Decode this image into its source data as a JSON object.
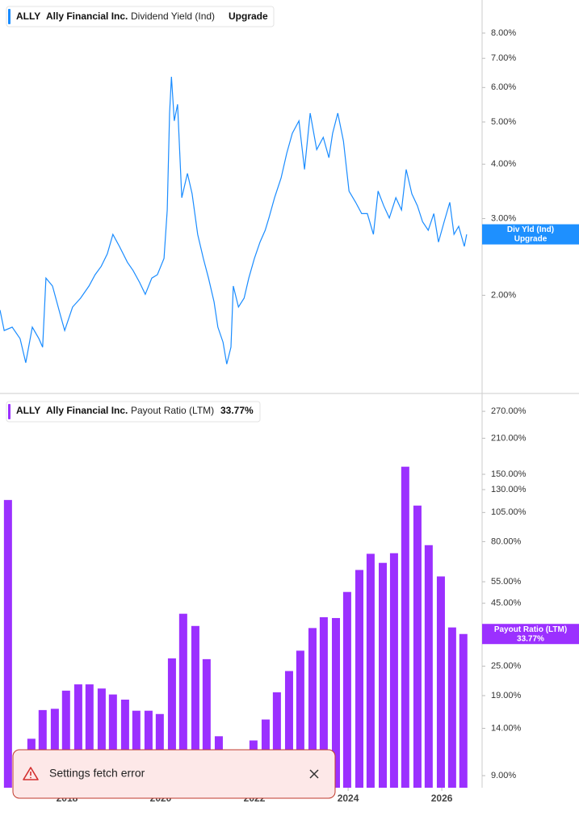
{
  "chart_data": [
    {
      "type": "line",
      "ticker": "ALLY",
      "company": "Ally Financial Inc.",
      "metric": "Dividend Yield (Ind)",
      "action": "Upgrade",
      "badge_label": "Div Yld (Ind)",
      "color": "#1a8cff",
      "log_scale": true,
      "x": [
        2016.57,
        2016.66,
        2016.83,
        2017.0,
        2017.12,
        2017.26,
        2017.4,
        2017.48,
        2017.55,
        2017.69,
        2017.86,
        2017.95,
        2018.12,
        2018.29,
        2018.47,
        2018.6,
        2018.73,
        2018.86,
        2018.98,
        2019.12,
        2019.29,
        2019.41,
        2019.55,
        2019.67,
        2019.81,
        2019.93,
        2020.07,
        2020.14,
        2020.19,
        2020.23,
        2020.29,
        2020.36,
        2020.45,
        2020.57,
        2020.67,
        2020.79,
        2020.91,
        2021.02,
        2021.14,
        2021.22,
        2021.33,
        2021.41,
        2021.5,
        2021.55,
        2021.66,
        2021.78,
        2021.88,
        2022.0,
        2022.12,
        2022.23,
        2022.31,
        2022.43,
        2022.57,
        2022.69,
        2022.81,
        2022.95,
        2023.07,
        2023.19,
        2023.33,
        2023.47,
        2023.59,
        2023.67,
        2023.78,
        2023.9,
        2024.02,
        2024.16,
        2024.29,
        2024.41,
        2024.54,
        2024.64,
        2024.76,
        2024.88,
        2025.02,
        2025.14,
        2025.24,
        2025.36,
        2025.48,
        2025.59,
        2025.71,
        2025.83,
        2025.93,
        2026.05,
        2026.17,
        2026.26,
        2026.36,
        2026.48,
        2026.53
      ],
      "values": [
        1.85,
        1.66,
        1.69,
        1.59,
        1.4,
        1.69,
        1.59,
        1.52,
        2.19,
        2.1,
        1.8,
        1.66,
        1.88,
        1.97,
        2.1,
        2.23,
        2.33,
        2.49,
        2.76,
        2.59,
        2.38,
        2.28,
        2.14,
        2.01,
        2.19,
        2.23,
        2.43,
        3.14,
        5.24,
        6.35,
        5.03,
        5.49,
        3.35,
        3.81,
        3.42,
        2.76,
        2.43,
        2.19,
        1.93,
        1.69,
        1.56,
        1.39,
        1.52,
        2.1,
        1.88,
        1.97,
        2.19,
        2.43,
        2.65,
        2.82,
        3.01,
        3.35,
        3.72,
        4.24,
        4.71,
        5.03,
        3.89,
        5.24,
        4.32,
        4.61,
        4.14,
        4.71,
        5.24,
        4.52,
        3.47,
        3.27,
        3.08,
        3.08,
        2.76,
        3.47,
        3.21,
        3.01,
        3.35,
        3.14,
        3.89,
        3.42,
        3.21,
        2.95,
        2.82,
        3.08,
        2.65,
        2.95,
        3.27,
        2.76,
        2.88,
        2.59,
        2.76
      ],
      "xlim": [
        2016.57,
        2026.86
      ],
      "ylim": [
        1.19,
        9.53
      ],
      "yticks": [
        {
          "value": 2,
          "label": "2.00%"
        },
        {
          "value": 3,
          "label": "3.00%"
        },
        {
          "value": 4,
          "label": "4.00%"
        },
        {
          "value": 5,
          "label": "5.00%"
        },
        {
          "value": 6,
          "label": "6.00%"
        },
        {
          "value": 7,
          "label": "7.00%"
        },
        {
          "value": 8,
          "label": "8.00%"
        }
      ]
    },
    {
      "type": "bar",
      "ticker": "ALLY",
      "company": "Ally Financial Inc.",
      "metric": "Payout Ratio (LTM)",
      "value_label": "33.77%",
      "color": "#9b30ff",
      "log_scale": true,
      "x": [
        2016.74,
        2017.24,
        2017.48,
        2017.74,
        2017.98,
        2018.24,
        2018.48,
        2018.74,
        2018.98,
        2019.24,
        2019.48,
        2019.74,
        2019.98,
        2020.24,
        2020.48,
        2020.74,
        2020.98,
        2021.24,
        2021.98,
        2022.24,
        2022.48,
        2022.74,
        2022.98,
        2023.24,
        2023.48,
        2023.74,
        2023.98,
        2024.24,
        2024.48,
        2024.74,
        2024.98,
        2025.22,
        2025.48,
        2025.72,
        2025.98,
        2026.22,
        2026.46
      ],
      "values": [
        118,
        12.7,
        16.6,
        16.8,
        19.9,
        21.1,
        21.1,
        20.3,
        19.2,
        18.3,
        16.5,
        16.5,
        16.0,
        26.9,
        40.8,
        36.4,
        26.7,
        13.0,
        12.5,
        15.2,
        19.6,
        23.9,
        28.9,
        35.7,
        39.5,
        39.2,
        50.0,
        61.4,
        71.4,
        65.6,
        71.8,
        161,
        112,
        77.4,
        57.8,
        35.9,
        33.77
      ],
      "xlim": [
        2016.57,
        2026.86
      ],
      "ylim": [
        8.04,
        319
      ],
      "xticks": [
        2018,
        2020,
        2022,
        2024,
        2026
      ],
      "yticks": [
        {
          "value": 9,
          "label": "9.00%"
        },
        {
          "value": 14,
          "label": "14.00%"
        },
        {
          "value": 19,
          "label": "19.00%"
        },
        {
          "value": 25,
          "label": "25.00%"
        },
        {
          "value": 45,
          "label": "45.00%"
        },
        {
          "value": 55,
          "label": "55.00%"
        },
        {
          "value": 80,
          "label": "80.00%"
        },
        {
          "value": 105,
          "label": "105.00%"
        },
        {
          "value": 130,
          "label": "130.00%"
        },
        {
          "value": 150,
          "label": "150.00%"
        },
        {
          "value": 210,
          "label": "210.00%"
        },
        {
          "value": 270,
          "label": "270.00%"
        }
      ]
    }
  ],
  "toast": {
    "message": "Settings fetch error"
  }
}
